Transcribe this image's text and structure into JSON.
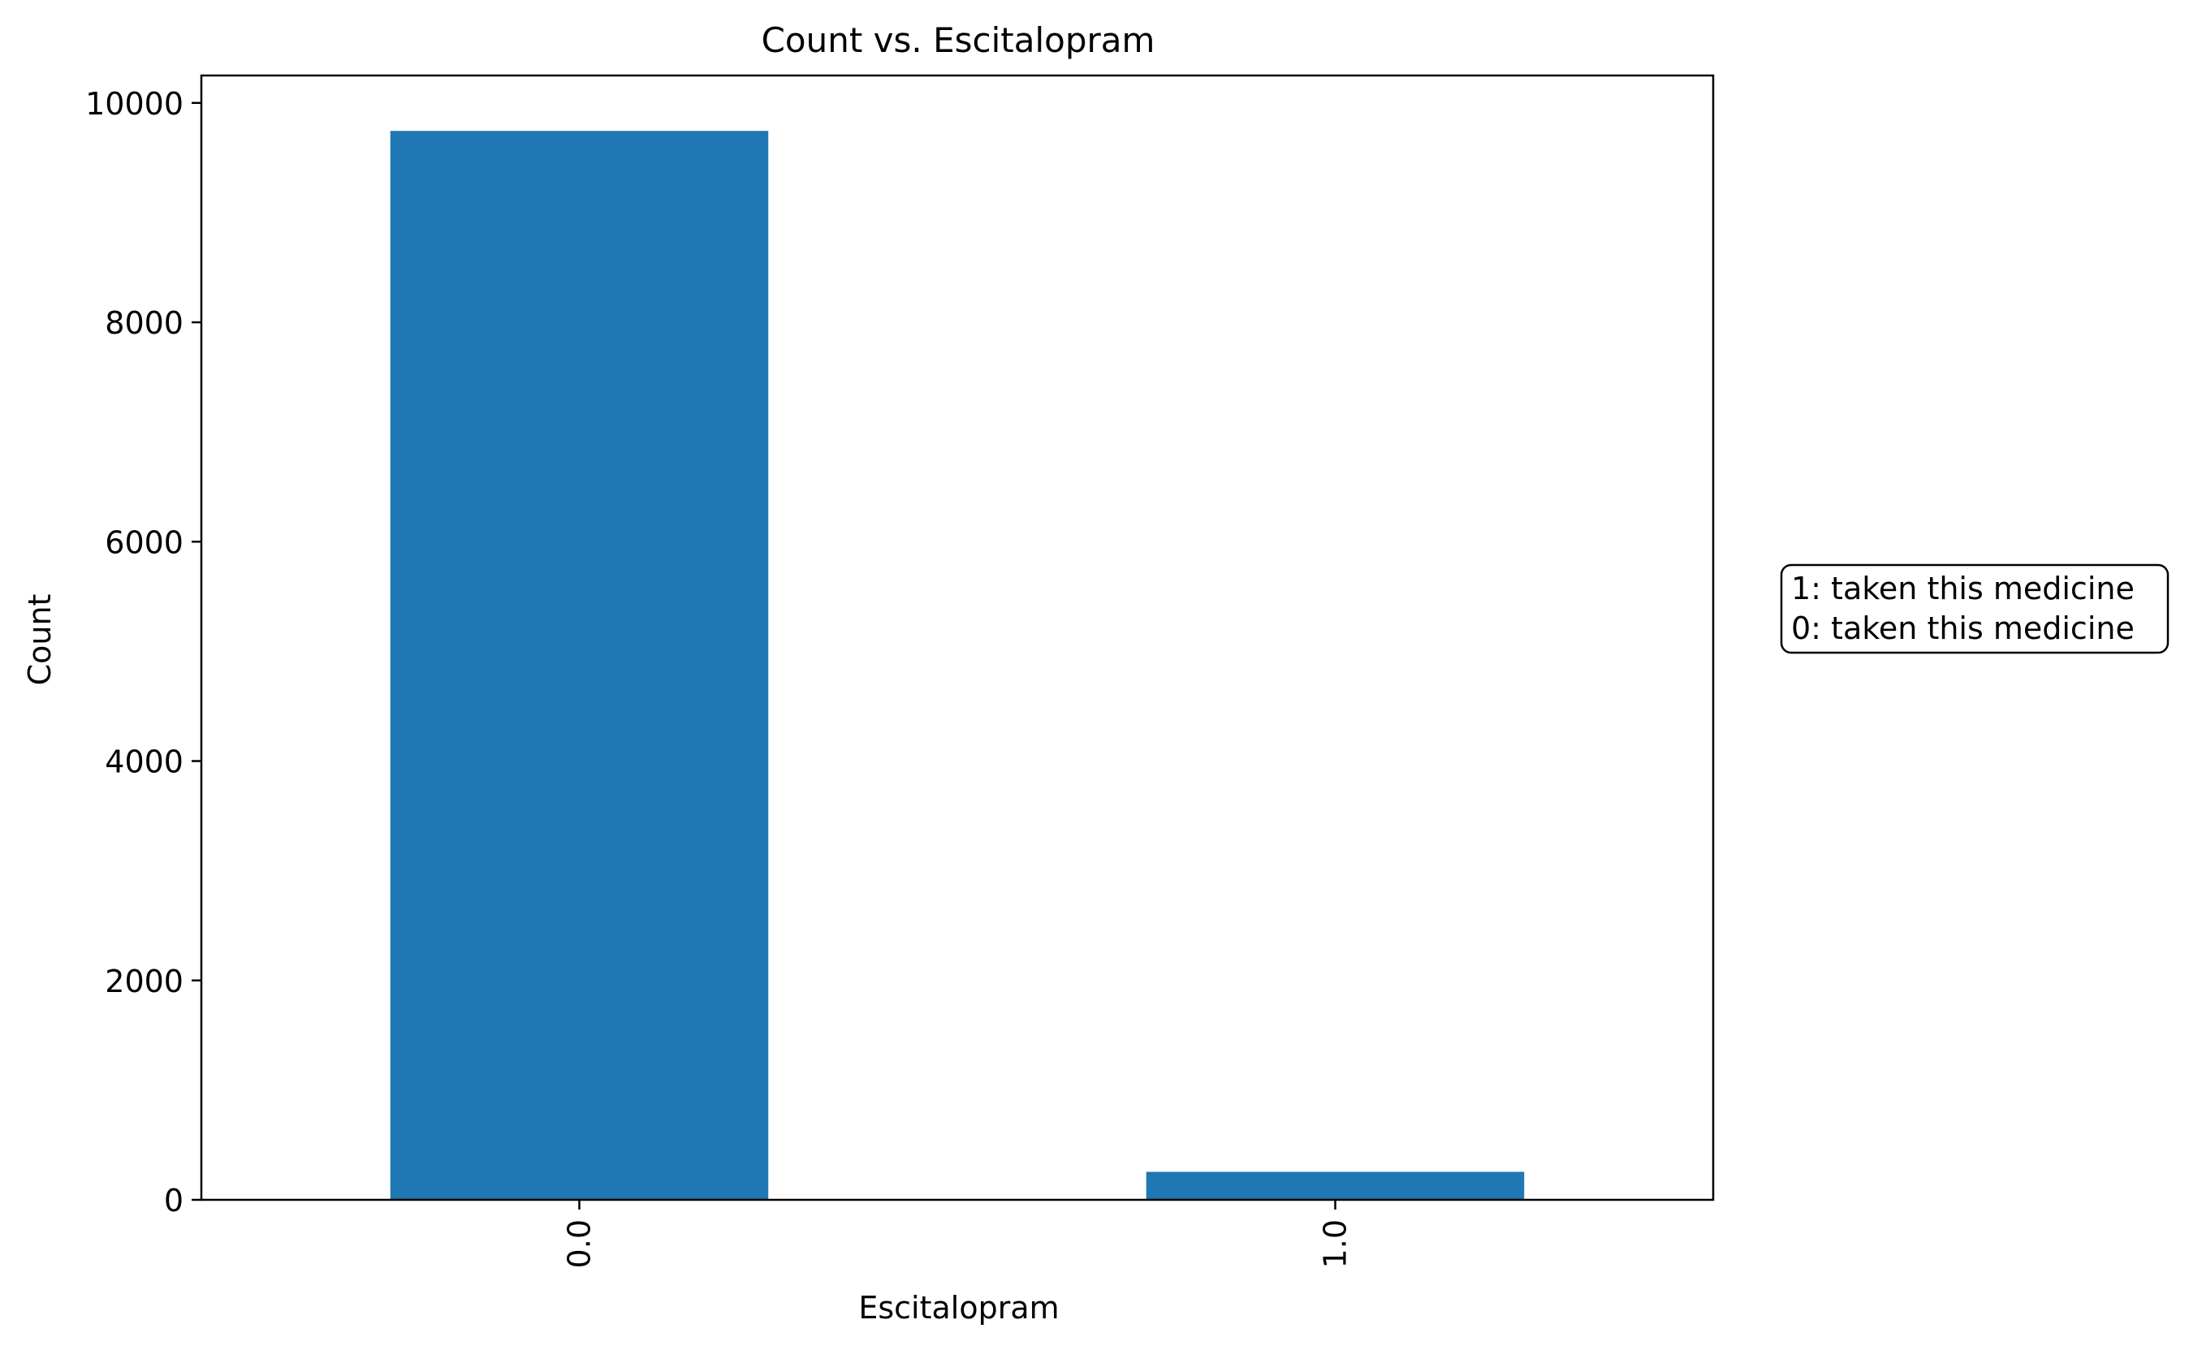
{
  "chart_data": {
    "type": "bar",
    "title": "Count vs. Escitalopram",
    "xlabel": "Escitalopram",
    "ylabel": "Count",
    "categories": [
      "0.0",
      "1.0"
    ],
    "values": [
      9745,
      255
    ],
    "ylim": [
      0,
      10250
    ],
    "yticks": [
      0,
      2000,
      4000,
      6000,
      8000,
      10000
    ],
    "bar_color": "#1f77b4",
    "grid": false,
    "x_tick_rotation": "vertical",
    "annotation": {
      "lines": [
        "1: taken this medicine",
        "0: taken this medicine"
      ],
      "placement": "right-center"
    }
  }
}
